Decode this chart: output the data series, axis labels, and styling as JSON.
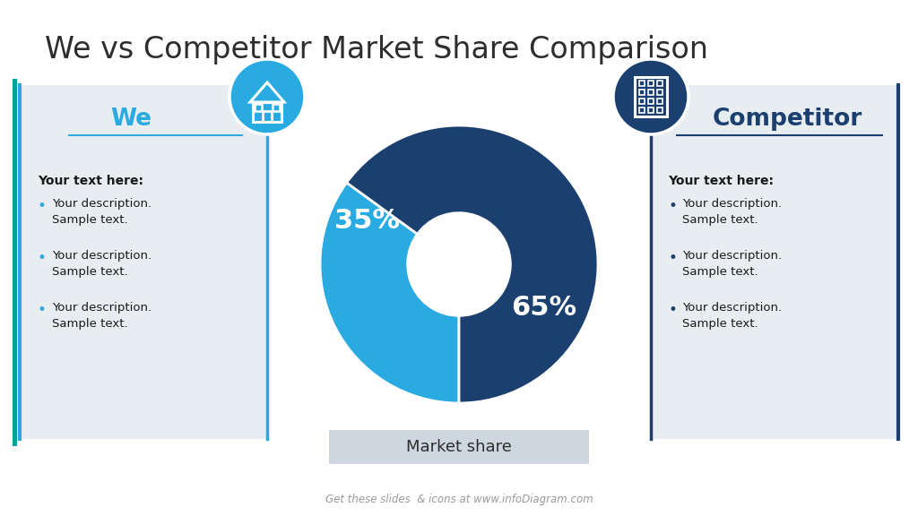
{
  "title": "We vs Competitor Market Share Comparison",
  "title_color": "#2d2d2d",
  "title_fontsize": 24,
  "background_color": "#ffffff",
  "teal_accent": "#00a0a0",
  "left_panel": {
    "label": "We",
    "label_color": "#29abe2",
    "box_bg": "#e8edf2",
    "box_border_color": "#29abe2",
    "header": "Your text here:",
    "bullets": [
      "Your description.\nSample text.",
      "Your description.\nSample text.",
      "Your description.\nSample text."
    ]
  },
  "right_panel": {
    "label": "Competitor",
    "label_color": "#1b3f6e",
    "box_bg": "#e8edf2",
    "box_border_color": "#1b3f6e",
    "header": "Your text here:",
    "bullets": [
      "Your description.\nSample text.",
      "Your description.\nSample text.",
      "Your description.\nSample text."
    ]
  },
  "pie": {
    "values": [
      35,
      65
    ],
    "colors": [
      "#29abe2",
      "#1b3f6e"
    ],
    "labels": [
      "35%",
      "65%"
    ],
    "label_fontsize": 22,
    "donut_inner_ratio": 0.37
  },
  "market_share_label": "Market share",
  "market_share_bg": "#ced6df",
  "footer": "Get these slides  & icons at www.infoDiagram.com",
  "footer_color": "#999999",
  "circle_left_color": "#29abe2",
  "circle_right_color": "#1b3f6e"
}
